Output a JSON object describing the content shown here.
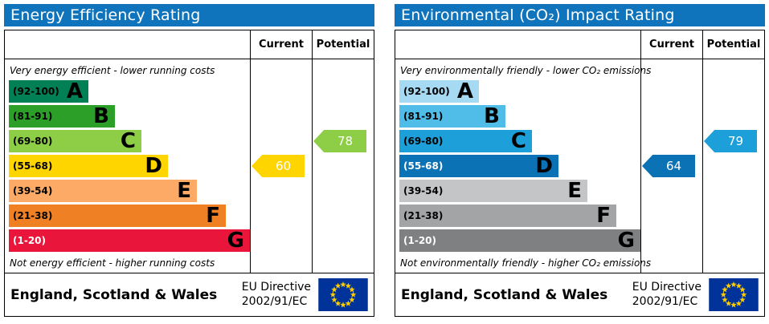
{
  "charts": [
    {
      "title": "Energy Efficiency Rating",
      "title_bg": "#1074bc",
      "columns": {
        "current": "Current",
        "potential": "Potential"
      },
      "top_caption": "Very energy efficient - lower running costs",
      "bottom_caption": "Not energy efficient - higher running costs",
      "bands": [
        {
          "range": "(92-100)",
          "letter": "A",
          "color": "#008054",
          "width_pct": 33,
          "range_color": "#000000"
        },
        {
          "range": "(81-91)",
          "letter": "B",
          "color": "#2c9f29",
          "width_pct": 44,
          "range_color": "#000000"
        },
        {
          "range": "(69-80)",
          "letter": "C",
          "color": "#8dce46",
          "width_pct": 55,
          "range_color": "#000000"
        },
        {
          "range": "(55-68)",
          "letter": "D",
          "color": "#ffd500",
          "width_pct": 66,
          "range_color": "#000000"
        },
        {
          "range": "(39-54)",
          "letter": "E",
          "color": "#fcaa65",
          "width_pct": 78,
          "range_color": "#000000"
        },
        {
          "range": "(21-38)",
          "letter": "F",
          "color": "#ef8023",
          "width_pct": 90,
          "range_color": "#000000"
        },
        {
          "range": "(1-20)",
          "letter": "G",
          "color": "#e9153b",
          "width_pct": 100,
          "range_color": "#ffffff"
        }
      ],
      "current": {
        "value": "60",
        "band_index": 3,
        "color": "#ffd500"
      },
      "potential": {
        "value": "78",
        "band_index": 2,
        "color": "#8dce46"
      },
      "footer": {
        "region": "England, Scotland & Wales",
        "directive_line1": "EU Directive",
        "directive_line2": "2002/91/EC"
      },
      "flag": {
        "bg": "#003399",
        "star": "#ffcc00"
      }
    },
    {
      "title": "Environmental (CO₂) Impact Rating",
      "title_bg": "#1074bc",
      "columns": {
        "current": "Current",
        "potential": "Potential"
      },
      "top_caption": "Very environmentally friendly - lower CO₂ emissions",
      "bottom_caption": "Not environmentally friendly - higher CO₂ emissions",
      "bands": [
        {
          "range": "(92-100)",
          "letter": "A",
          "color": "#a5daf2",
          "width_pct": 33,
          "range_color": "#000000"
        },
        {
          "range": "(81-91)",
          "letter": "B",
          "color": "#50bde8",
          "width_pct": 44,
          "range_color": "#000000"
        },
        {
          "range": "(69-80)",
          "letter": "C",
          "color": "#1d9fd9",
          "width_pct": 55,
          "range_color": "#000000"
        },
        {
          "range": "(55-68)",
          "letter": "D",
          "color": "#0b72b5",
          "width_pct": 66,
          "range_color": "#ffffff"
        },
        {
          "range": "(39-54)",
          "letter": "E",
          "color": "#c4c5c7",
          "width_pct": 78,
          "range_color": "#000000"
        },
        {
          "range": "(21-38)",
          "letter": "F",
          "color": "#a2a4a6",
          "width_pct": 90,
          "range_color": "#000000"
        },
        {
          "range": "(1-20)",
          "letter": "G",
          "color": "#7e8082",
          "width_pct": 100,
          "range_color": "#ffffff"
        }
      ],
      "current": {
        "value": "64",
        "band_index": 3,
        "color": "#0b72b5"
      },
      "potential": {
        "value": "79",
        "band_index": 2,
        "color": "#1d9fd9"
      },
      "footer": {
        "region": "England, Scotland & Wales",
        "directive_line1": "EU Directive",
        "directive_line2": "2002/91/EC"
      },
      "flag": {
        "bg": "#003399",
        "star": "#ffcc00"
      }
    }
  ],
  "chart_data": [
    {
      "type": "bar",
      "title": "Energy Efficiency Rating",
      "categories": [
        "A (92-100)",
        "B (81-91)",
        "C (69-80)",
        "D (55-68)",
        "E (39-54)",
        "F (21-38)",
        "G (1-20)"
      ],
      "series": [
        {
          "name": "Current",
          "values": [
            60
          ],
          "band": "D"
        },
        {
          "name": "Potential",
          "values": [
            78
          ],
          "band": "C"
        }
      ],
      "xlabel": "",
      "ylabel": "",
      "ylim": [
        1,
        100
      ],
      "annotations": [
        "Very energy efficient - lower running costs",
        "Not energy efficient - higher running costs"
      ]
    },
    {
      "type": "bar",
      "title": "Environmental (CO₂) Impact Rating",
      "categories": [
        "A (92-100)",
        "B (81-91)",
        "C (69-80)",
        "D (55-68)",
        "E (39-54)",
        "F (21-38)",
        "G (1-20)"
      ],
      "series": [
        {
          "name": "Current",
          "values": [
            64
          ],
          "band": "D"
        },
        {
          "name": "Potential",
          "values": [
            79
          ],
          "band": "C"
        }
      ],
      "xlabel": "",
      "ylabel": "",
      "ylim": [
        1,
        100
      ],
      "annotations": [
        "Very environmentally friendly - lower CO₂ emissions",
        "Not environmentally friendly - higher CO₂ emissions"
      ]
    }
  ]
}
